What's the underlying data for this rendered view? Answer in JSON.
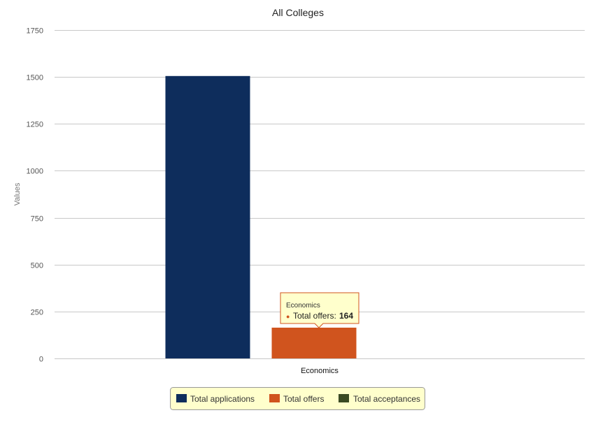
{
  "chart_data": {
    "type": "bar",
    "title": "All Colleges",
    "ylabel": "Values",
    "xlabel": "",
    "ylim": [
      0,
      1750
    ],
    "yticks": [
      0,
      250,
      500,
      750,
      1000,
      1250,
      1500,
      1750
    ],
    "ytick_labels": [
      "0",
      "250",
      "500",
      "750",
      "1000",
      "1250",
      "1500",
      "1750"
    ],
    "categories": [
      "Economics"
    ],
    "series": [
      {
        "name": "Total applications",
        "values": [
          1505
        ],
        "color": "#0e2d5c"
      },
      {
        "name": "Total offers",
        "values": [
          164
        ],
        "color": "#d0541e"
      },
      {
        "name": "Total acceptances",
        "values": [
          0
        ],
        "color": "#3a4a23"
      }
    ],
    "grid": true,
    "legend_position": "bottom-center",
    "tooltip": {
      "category": "Economics",
      "series_label": "Total offers:",
      "value": "164",
      "bullet": "●",
      "bullet_color": "#d0541e"
    }
  }
}
